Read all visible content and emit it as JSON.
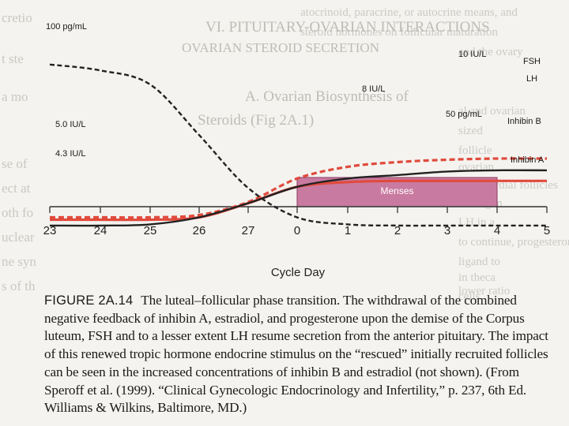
{
  "chart_data": {
    "type": "line",
    "title": "",
    "xlabel": "Cycle Day",
    "ylabel": "",
    "x_ticks": [
      "23",
      "24",
      "25",
      "26",
      "27",
      "0",
      "1",
      "2",
      "3",
      "4",
      "5"
    ],
    "menses": {
      "label": "Menses",
      "start": "0",
      "end": "4",
      "color": "#c97aa0"
    },
    "series": [
      {
        "name": "FSH",
        "style": "dashed",
        "color": "#e04a3c",
        "start_label": "5.0 IU/L",
        "end_label": "10 IU/L",
        "x": [
          "23",
          "24",
          "25",
          "26",
          "27",
          "0",
          "1",
          "2",
          "3",
          "4",
          "5"
        ],
        "values": [
          5.0,
          5.0,
          5.0,
          5.2,
          6.3,
          8.3,
          9.3,
          9.7,
          9.9,
          10.0,
          10.0
        ]
      },
      {
        "name": "LH",
        "style": "solid",
        "color": "#e04a3c",
        "end_label": "8 IU/L",
        "x": [
          "23",
          "24",
          "25",
          "26",
          "27",
          "0",
          "1",
          "2",
          "3",
          "4",
          "5"
        ],
        "values": [
          4.8,
          4.8,
          4.8,
          5.0,
          6.2,
          7.6,
          8.0,
          8.1,
          8.1,
          8.1,
          8.1
        ]
      },
      {
        "name": "Inhibin B",
        "style": "solid",
        "color": "#222222",
        "start_label": "4.3 IU/L",
        "end_label": "50 pg/mL",
        "x": [
          "23",
          "24",
          "25",
          "26",
          "27",
          "0",
          "1",
          "2",
          "3",
          "4",
          "5"
        ],
        "values": [
          4.3,
          4.3,
          4.4,
          5.0,
          6.2,
          7.6,
          8.3,
          8.6,
          8.9,
          9.0,
          9.0
        ]
      },
      {
        "name": "Inhibin A",
        "style": "dashed",
        "color": "#222222",
        "start_label": "100 pg/mL",
        "x": [
          "23",
          "24",
          "25",
          "26",
          "27",
          "0",
          "1",
          "2",
          "3",
          "4",
          "5"
        ],
        "values": [
          18.0,
          17.5,
          16.3,
          12.0,
          7.5,
          5.0,
          4.4,
          4.3,
          4.3,
          4.3,
          4.3
        ]
      }
    ]
  },
  "caption": {
    "label": "FIGURE 2A.14",
    "text": "The luteal–follicular phase transition. The withdrawal of the combined negative feedback of inhibin A, estradiol, and progesterone upon the demise of the Corpus luteum, FSH and to a lesser extent LH resume secretion from the anterior pituitary. The impact of this renewed tropic hormone endocrine stimulus on the “rescued” initially recruited follicles can be seen in the increased concentrations of inhibin B and estradiol (not shown). (From Speroff et al. (1999). “Clinical Gynecologic Endocrinology and Infertility,” p. 237, 6th Ed. Williams & Wilkins, Baltimore, MD.)"
  },
  "bleed_text": {
    "left": [
      "cretio",
      "t ste",
      "a mo",
      "se of",
      "ect at",
      "oth fo",
      "uclear",
      "ne syn",
      "s of th"
    ],
    "right": [
      "atocrinoid, paracrine, or autocrine means, and",
      "steroid hormones on follicular maturation",
      "and the ovary",
      "al and ovarian",
      "sized",
      "follicle",
      "ovarian",
      "a primordial follicles",
      "androgen",
      "LH in a",
      "to continue, progesterone",
      "ligand to",
      "in theca",
      "lower ratio",
      "cells"
    ],
    "center": [
      "VI. PITUITARY-OVARIAN INTERACTIONS",
      "OVARIAN STEROID SECRETION",
      "A. Ovarian Biosynthesis of",
      "Steroids (Fig 2A.1)"
    ]
  }
}
